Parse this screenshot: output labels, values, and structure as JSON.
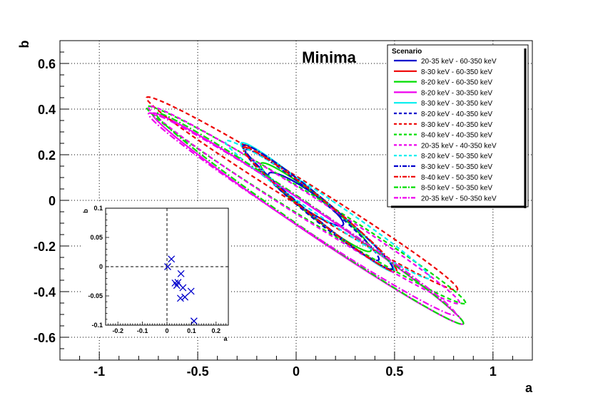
{
  "chart_data": [
    {
      "type": "line",
      "subtype": "ellipse-contours",
      "title": "Minima",
      "xlabel": "a",
      "ylabel": "b",
      "xlim": [
        -1.2,
        1.2
      ],
      "ylim": [
        -0.7,
        0.7
      ],
      "x_ticks": [
        -1,
        -0.5,
        0,
        0.5,
        1
      ],
      "x_tick_labels": [
        "-1",
        "-0.5",
        "0",
        "0.5",
        "1"
      ],
      "y_ticks": [
        -0.6,
        -0.4,
        -0.2,
        0,
        0.2,
        0.4,
        0.6
      ],
      "y_tick_labels": [
        "-0.6",
        "-0.4",
        "-0.2",
        "0",
        "0.2",
        "0.4",
        "0.6"
      ],
      "grid": true,
      "legend_position": "top-right",
      "legend_title": "Scenario",
      "series": [
        {
          "name": "20-35 keV  -  60-350 keV",
          "color": "#0000cc",
          "dash": "solid",
          "center": [
            0.05,
            0.005
          ],
          "p1": [
            0.19,
            -0.11
          ],
          "p2": [
            0.01,
            0.04
          ]
        },
        {
          "name": "8-30 keV  -  60-350 keV",
          "color": "#ee0000",
          "dash": "solid",
          "center": [
            0.11,
            -0.03
          ],
          "p1": [
            0.38,
            -0.27
          ],
          "p2": [
            0.02,
            0.04
          ]
        },
        {
          "name": "8-20 keV  -  60-350 keV",
          "color": "#00dd00",
          "dash": "solid",
          "center": [
            0.1,
            -0.03
          ],
          "p1": [
            0.28,
            -0.19
          ],
          "p2": [
            0.02,
            0.04
          ]
        },
        {
          "name": "8-20 keV  -  30-350 keV",
          "color": "#ee00ee",
          "dash": "solid",
          "center": [
            0.06,
            -0.08
          ],
          "p1": [
            0.79,
            -0.46
          ],
          "p2": [
            0.02,
            0.05
          ]
        },
        {
          "name": "8-30 keV  -  30-350 keV",
          "color": "#00eeee",
          "dash": "solid",
          "center": [
            0.11,
            -0.03
          ],
          "p1": [
            0.39,
            -0.28
          ],
          "p2": [
            0.02,
            0.04
          ]
        },
        {
          "name": "8-20 keV  -  40-350 keV",
          "color": "#0000cc",
          "dash": "dashed",
          "center": [
            0.08,
            -0.02
          ],
          "p1": [
            0.34,
            -0.24
          ],
          "p2": [
            0.02,
            0.04
          ]
        },
        {
          "name": "8-30 keV  -  40-350 keV",
          "color": "#ee0000",
          "dash": "dashed",
          "center": [
            0.03,
            0.03
          ],
          "p1": [
            0.79,
            -0.42
          ],
          "p2": [
            0.02,
            0.05
          ]
        },
        {
          "name": "8-40 keV  -  40-350 keV",
          "color": "#00dd00",
          "dash": "dashed",
          "center": [
            0.05,
            -0.02
          ],
          "p1": [
            0.81,
            -0.43
          ],
          "p2": [
            0.02,
            0.05
          ]
        },
        {
          "name": "20-35 keV  -  40-350 keV",
          "color": "#ee00ee",
          "dash": "dashed",
          "center": [
            0.04,
            -0.02
          ],
          "p1": [
            0.79,
            -0.43
          ],
          "p2": [
            0.02,
            0.05
          ]
        },
        {
          "name": "8-20 keV  -  50-350 keV",
          "color": "#00eeee",
          "dash": "dashed",
          "center": [
            0.16,
            -0.04
          ],
          "p1": [
            0.52,
            -0.3
          ],
          "p2": [
            0.02,
            0.04
          ]
        },
        {
          "name": "8-30 keV  -  50-350 keV",
          "color": "#0000cc",
          "dash": "dashdot",
          "center": [
            0.11,
            -0.03
          ],
          "p1": [
            0.38,
            -0.27
          ],
          "p2": [
            0.02,
            0.04
          ]
        },
        {
          "name": "8-40 keV  -  50-350 keV",
          "color": "#ee0000",
          "dash": "dashdot",
          "center": [
            0.12,
            -0.04
          ],
          "p1": [
            0.39,
            -0.27
          ],
          "p2": [
            0.02,
            0.04
          ]
        },
        {
          "name": "8-50 keV  -  50-350 keV",
          "color": "#00dd00",
          "dash": "dashdot",
          "center": [
            0.07,
            -0.08
          ],
          "p1": [
            0.78,
            -0.46
          ],
          "p2": [
            0.02,
            0.05
          ]
        },
        {
          "name": "20-35 keV  -  50-350 keV",
          "color": "#ee00ee",
          "dash": "dashdot",
          "center": [
            0.03,
            -0.06
          ],
          "p1": [
            0.78,
            -0.44
          ],
          "p2": [
            0.02,
            0.05
          ]
        }
      ]
    },
    {
      "type": "scatter",
      "title": "",
      "xlabel": "a",
      "ylabel": "b",
      "xlim": [
        -0.25,
        0.25
      ],
      "ylim": [
        -0.1,
        0.1
      ],
      "x_ticks": [
        -0.2,
        -0.1,
        0,
        0.1,
        0.2
      ],
      "x_tick_labels": [
        "-0.2",
        "-0.1",
        "0",
        "0.1",
        "0.2"
      ],
      "y_ticks": [
        -0.1,
        -0.05,
        0,
        0.05,
        0.1
      ],
      "y_tick_labels": [
        "-0.1",
        "-0.05",
        "0",
        "0.05",
        "0.1"
      ],
      "marker": "x",
      "marker_color": "#0000cc",
      "reference_lines": {
        "x": 0,
        "y": 0,
        "style": "dashed"
      },
      "points": [
        [
          0.003,
          0.0
        ],
        [
          0.018,
          0.013
        ],
        [
          0.033,
          -0.028
        ],
        [
          0.04,
          -0.032
        ],
        [
          0.045,
          -0.027
        ],
        [
          0.057,
          -0.012
        ],
        [
          0.055,
          -0.054
        ],
        [
          0.065,
          -0.036
        ],
        [
          0.073,
          -0.052
        ],
        [
          0.098,
          -0.042
        ],
        [
          0.11,
          -0.093
        ]
      ]
    }
  ]
}
